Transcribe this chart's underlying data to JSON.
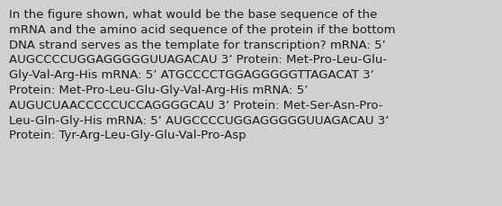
{
  "background_color": "#d0d0d0",
  "text_color": "#1a1a1a",
  "font_size": 9.5,
  "fig_width": 5.58,
  "fig_height": 2.3,
  "dpi": 100,
  "lines": [
    "In the figure shown, what would be the base sequence of the",
    "mRNA and the amino acid sequence of the protein if the bottom",
    "DNA strand serves as the template for transcription? mRNA: 5’",
    "AUGCCCCUGGAGGGGGUUAGACAU 3’ Protein: Met-Pro-Leu-Glu-",
    "Gly-Val-Arg-His mRNA: 5’ ATGCCCCTGGAGGGGGTTAGACAT 3’",
    "Protein: Met-Pro-Leu-Glu-Gly-Val-Arg-His mRNA: 5’",
    "AUGUCUAACCCCCUCCAGGGGCAU 3’ Protein: Met-Ser-Asn-Pro-",
    "Leu-Gln-Gly-His mRNA: 5’ AUGCCCCUGGAGGGGGUUAGACAU 3’",
    "Protein: Tyr-Arg-Leu-Gly-Glu-Val-Pro-Asp"
  ]
}
